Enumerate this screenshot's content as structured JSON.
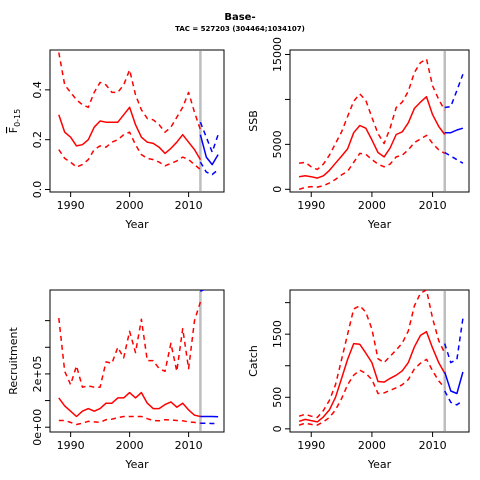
{
  "header": {
    "title": "Base-",
    "subtitle": "TAC = 527203 (304464;1034107)"
  },
  "colors": {
    "historic": "#ff0000",
    "projection": "#0000ff",
    "divider": "#bebebe",
    "axis": "#000000"
  },
  "chart_data": [
    {
      "type": "line",
      "id": "fbar",
      "xlabel": "Year",
      "ylabel": "F",
      "ylabel_subscript": "0-15",
      "xlim": [
        1986.5,
        2016
      ],
      "ylim": [
        -0.01,
        0.56
      ],
      "xticks": [
        1990,
        2000,
        2010
      ],
      "yticks": [
        0.0,
        0.2,
        0.4
      ],
      "ytick_labels": [
        "0.0",
        "0.2",
        "0.4"
      ],
      "vline_x": 2012,
      "historic": {
        "x": [
          1988,
          1989,
          1990,
          1991,
          1992,
          1993,
          1994,
          1995,
          1996,
          1997,
          1998,
          1999,
          2000,
          2001,
          2002,
          2003,
          2004,
          2005,
          2006,
          2007,
          2008,
          2009,
          2010,
          2011,
          2012
        ],
        "median": [
          0.3,
          0.23,
          0.21,
          0.175,
          0.18,
          0.2,
          0.25,
          0.275,
          0.27,
          0.27,
          0.27,
          0.3,
          0.33,
          0.26,
          0.21,
          0.19,
          0.185,
          0.17,
          0.145,
          0.165,
          0.19,
          0.22,
          0.19,
          0.16,
          0.12
        ],
        "lower": [
          0.16,
          0.125,
          0.11,
          0.09,
          0.1,
          0.12,
          0.16,
          0.175,
          0.17,
          0.19,
          0.2,
          0.22,
          0.23,
          0.18,
          0.14,
          0.125,
          0.12,
          0.11,
          0.095,
          0.105,
          0.115,
          0.13,
          0.12,
          0.1,
          0.08
        ],
        "upper": [
          0.55,
          0.42,
          0.39,
          0.36,
          0.34,
          0.33,
          0.39,
          0.43,
          0.42,
          0.39,
          0.39,
          0.42,
          0.48,
          0.38,
          0.32,
          0.285,
          0.28,
          0.26,
          0.23,
          0.25,
          0.29,
          0.33,
          0.39,
          0.31,
          0.24
        ]
      },
      "projection": {
        "x": [
          2012,
          2013,
          2014,
          2015
        ],
        "median": [
          0.22,
          0.13,
          0.1,
          0.14
        ],
        "lower": [
          0.11,
          0.07,
          0.06,
          0.08
        ],
        "upper": [
          0.27,
          0.21,
          0.15,
          0.22
        ]
      }
    },
    {
      "type": "line",
      "id": "ssb",
      "xlabel": "Year",
      "ylabel": "SSB",
      "xlim": [
        1986.5,
        2016
      ],
      "ylim": [
        -300,
        15500
      ],
      "xticks": [
        1990,
        2000,
        2010
      ],
      "yticks": [
        0,
        5000,
        10000,
        15000
      ],
      "ytick_labels": [
        "0",
        "5000",
        "",
        "15000"
      ],
      "vline_x": 2012,
      "historic": {
        "x": [
          1988,
          1989,
          1990,
          1991,
          1992,
          1993,
          1994,
          1995,
          1996,
          1997,
          1998,
          1999,
          2000,
          2001,
          2002,
          2003,
          2004,
          2005,
          2006,
          2007,
          2008,
          2009,
          2010,
          2011,
          2012
        ],
        "median": [
          1400,
          1500,
          1400,
          1250,
          1500,
          2100,
          2900,
          3700,
          4500,
          6300,
          7100,
          6800,
          5500,
          4100,
          3600,
          4600,
          6100,
          6400,
          7400,
          9000,
          9700,
          10300,
          8300,
          7000,
          6100
        ],
        "lower": [
          0,
          200,
          300,
          250,
          400,
          700,
          1100,
          1600,
          2000,
          3000,
          4000,
          3900,
          3300,
          2800,
          2500,
          2800,
          3600,
          3800,
          4400,
          5200,
          5600,
          6000,
          5100,
          4400,
          4000
        ],
        "upper": [
          2900,
          3000,
          2500,
          2200,
          2800,
          3800,
          5100,
          6400,
          8100,
          9800,
          10600,
          9900,
          8000,
          6200,
          5100,
          6800,
          9100,
          9700,
          10900,
          13000,
          14100,
          14500,
          11500,
          10000,
          8800
        ]
      },
      "projection": {
        "x": [
          2012,
          2013,
          2014,
          2015
        ],
        "median": [
          6300,
          6300,
          6600,
          6800
        ],
        "lower": [
          4100,
          3700,
          3300,
          2900
        ],
        "upper": [
          9100,
          9200,
          11000,
          12800
        ]
      }
    },
    {
      "type": "line",
      "id": "recruitment",
      "xlabel": "Year",
      "ylabel": "Recruitment",
      "xlim": [
        1986.5,
        2016
      ],
      "ylim": [
        -18000,
        515000
      ],
      "xticks": [
        1990,
        2000,
        2010
      ],
      "yticks": [
        0,
        100000,
        200000,
        300000,
        400000
      ],
      "ytick_labels": [
        "0e+00",
        "",
        "2e+05",
        "",
        ""
      ],
      "vline_x": 2012,
      "historic": {
        "x": [
          1988,
          1989,
          1990,
          1991,
          1992,
          1993,
          1994,
          1995,
          1996,
          1997,
          1998,
          1999,
          2000,
          2001,
          2002,
          2003,
          2004,
          2005,
          2006,
          2007,
          2008,
          2009,
          2010,
          2011,
          2012
        ],
        "median": [
          110000,
          80000,
          60000,
          40000,
          60000,
          70000,
          60000,
          70000,
          90000,
          90000,
          110000,
          110000,
          130000,
          110000,
          130000,
          90000,
          70000,
          70000,
          85000,
          95000,
          75000,
          90000,
          65000,
          45000,
          40000
        ],
        "lower": [
          25000,
          25000,
          18000,
          10000,
          15000,
          22000,
          20000,
          18000,
          28000,
          30000,
          36000,
          40000,
          40000,
          40000,
          40000,
          32000,
          25000,
          24000,
          28000,
          27000,
          25000,
          24000,
          20000,
          18000,
          15000
        ],
        "upper": [
          410000,
          210000,
          160000,
          230000,
          150000,
          155000,
          150000,
          150000,
          245000,
          240000,
          300000,
          260000,
          360000,
          280000,
          405000,
          250000,
          250000,
          220000,
          210000,
          315000,
          210000,
          370000,
          220000,
          400000,
          470000
        ]
      },
      "projection": {
        "x": [
          2012,
          2013,
          2014,
          2015
        ],
        "median": [
          40000,
          40000,
          40000,
          39000
        ],
        "lower": [
          15000,
          15000,
          14000,
          14000
        ],
        "upper": [
          510000,
          520000,
          520000,
          520000
        ]
      }
    },
    {
      "type": "line",
      "id": "catch",
      "xlabel": "Year",
      "ylabel": "Catch",
      "xlim": [
        1986.5,
        2016
      ],
      "ylim": [
        -50,
        2200
      ],
      "xticks": [
        1990,
        2000,
        2010
      ],
      "yticks": [
        0,
        500,
        1000,
        1500,
        2000
      ],
      "ytick_labels": [
        "0",
        "500",
        "",
        "1500",
        ""
      ],
      "vline_x": 2012,
      "historic": {
        "x": [
          1988,
          1989,
          1990,
          1991,
          1992,
          1993,
          1994,
          1995,
          1996,
          1997,
          1998,
          1999,
          2000,
          2001,
          2002,
          2003,
          2004,
          2005,
          2006,
          2007,
          2008,
          2009,
          2010,
          2011,
          2012
        ],
        "median": [
          120,
          150,
          130,
          110,
          190,
          300,
          500,
          800,
          1100,
          1350,
          1340,
          1200,
          1050,
          750,
          740,
          800,
          850,
          920,
          1050,
          1300,
          1480,
          1540,
          1280,
          1050,
          880
        ],
        "lower": [
          60,
          90,
          70,
          60,
          110,
          180,
          300,
          480,
          700,
          850,
          930,
          880,
          780,
          560,
          570,
          610,
          650,
          700,
          780,
          950,
          1040,
          1100,
          920,
          760,
          650
        ],
        "upper": [
          200,
          230,
          200,
          180,
          290,
          450,
          700,
          1100,
          1500,
          1900,
          1950,
          1850,
          1580,
          1110,
          1050,
          1150,
          1250,
          1360,
          1550,
          1950,
          2150,
          2200,
          1750,
          1400,
          1200
        ]
      },
      "projection": {
        "x": [
          2012,
          2013,
          2014,
          2015
        ],
        "median": [
          900,
          600,
          560,
          900
        ],
        "lower": [
          600,
          420,
          380,
          450
        ],
        "upper": [
          1350,
          1050,
          1100,
          1750
        ]
      }
    }
  ]
}
